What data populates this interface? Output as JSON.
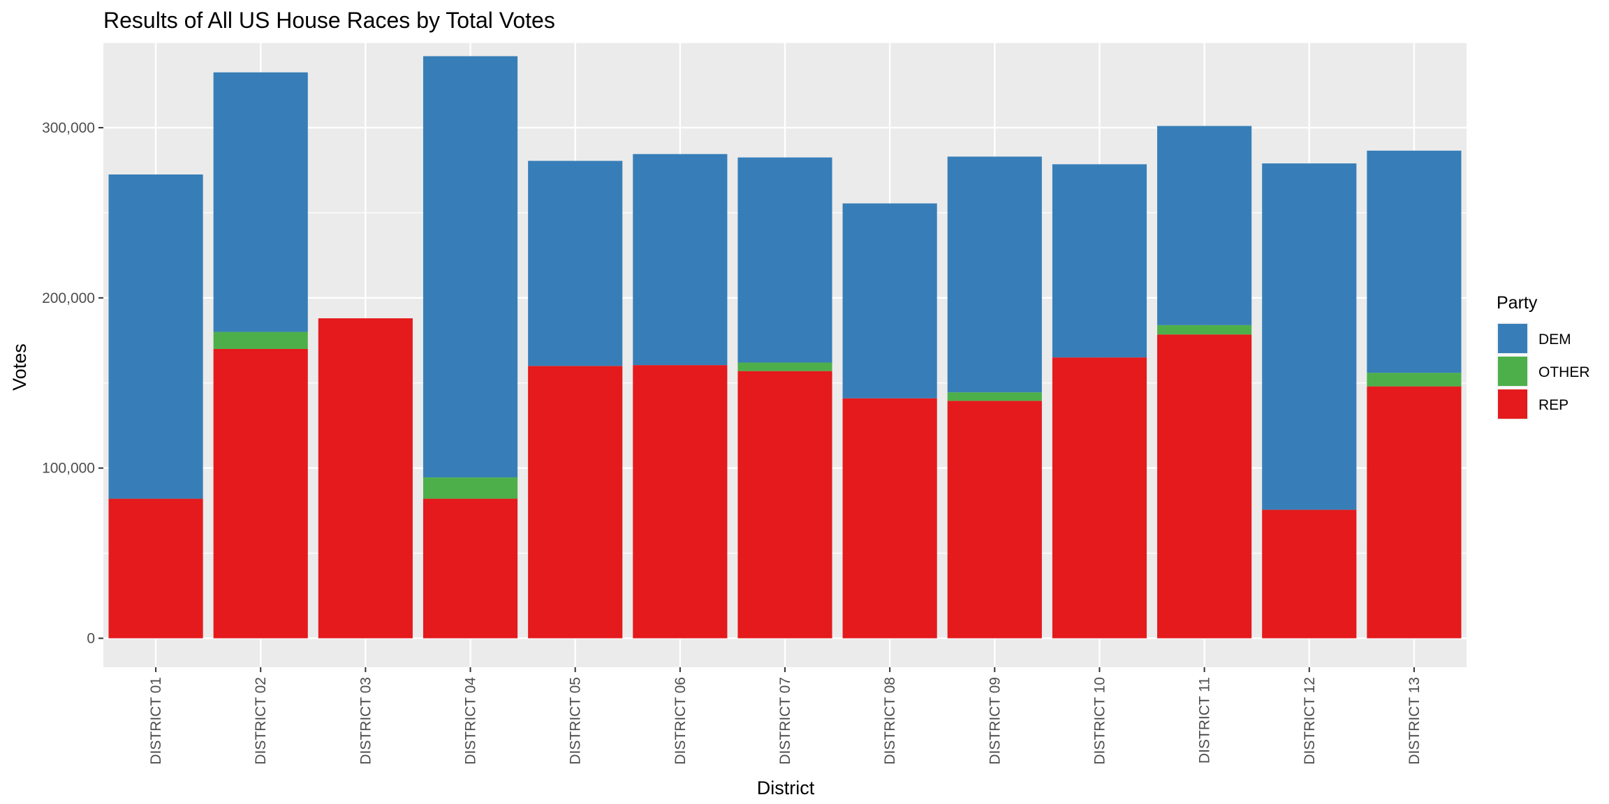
{
  "chart_data": {
    "type": "bar",
    "stacked": true,
    "title": "Results of All US House Races by Total Votes",
    "xlabel": "District",
    "ylabel": "Votes",
    "ylim": [
      -17000,
      350000
    ],
    "yticks": [
      0,
      100000,
      200000,
      300000
    ],
    "ytick_labels": [
      "0",
      "100,000",
      "200,000",
      "300,000"
    ],
    "grid": true,
    "legend_title": "Party",
    "legend_position": "right",
    "categories": [
      "DISTRICT 01",
      "DISTRICT 02",
      "DISTRICT 03",
      "DISTRICT 04",
      "DISTRICT 05",
      "DISTRICT 06",
      "DISTRICT 07",
      "DISTRICT 08",
      "DISTRICT 09",
      "DISTRICT 10",
      "DISTRICT 11",
      "DISTRICT 12",
      "DISTRICT 13"
    ],
    "series": [
      {
        "name": "REP",
        "color": "#E41A1C",
        "values": [
          82000,
          170000,
          188000,
          82000,
          160000,
          160500,
          157000,
          141000,
          139500,
          165000,
          178500,
          75500,
          148000
        ]
      },
      {
        "name": "OTHER",
        "color": "#4DAF4A",
        "values": [
          0,
          10000,
          0,
          12500,
          0,
          0,
          5000,
          0,
          5000,
          0,
          5500,
          0,
          8000
        ]
      },
      {
        "name": "DEM",
        "color": "#377EB8",
        "values": [
          190500,
          152500,
          0,
          247500,
          120500,
          124000,
          120500,
          114500,
          138500,
          113500,
          117000,
          203500,
          130500
        ]
      }
    ],
    "legend_order": [
      "DEM",
      "OTHER",
      "REP"
    ]
  }
}
